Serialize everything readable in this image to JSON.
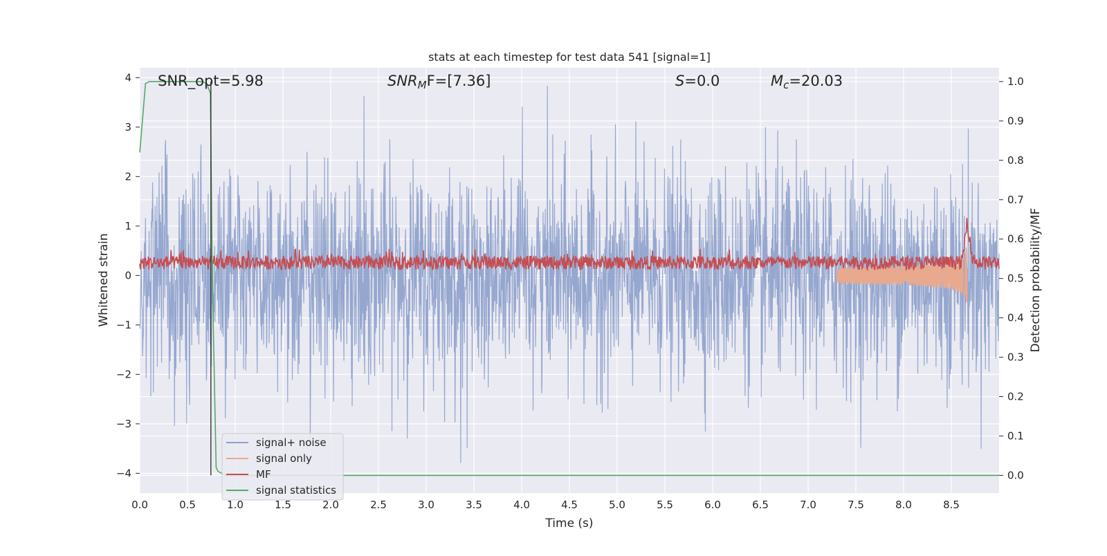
{
  "chart_data": {
    "type": "line",
    "title": "stats at each timestep for test data 541 [signal=1]",
    "xlabel": "Time (s)",
    "ylabel_left": "Whitened strain",
    "ylabel_right": "Detection probability/MF",
    "xlim": [
      0.0,
      9.0
    ],
    "ylim_left": [
      -4.4,
      4.2
    ],
    "ylim_right": [
      -0.045,
      1.035
    ],
    "x_ticks": [
      "0.0",
      "0.5",
      "1.0",
      "1.5",
      "2.0",
      "2.5",
      "3.0",
      "3.5",
      "4.0",
      "4.5",
      "5.0",
      "5.5",
      "6.0",
      "6.5",
      "7.0",
      "7.5",
      "8.0",
      "8.5"
    ],
    "y_left_ticks": [
      "4",
      "3",
      "2",
      "1",
      "0",
      "−1",
      "−2",
      "−3",
      "−4"
    ],
    "y_right_ticks": [
      "1.0",
      "0.9",
      "0.8",
      "0.7",
      "0.6",
      "0.5",
      "0.4",
      "0.3",
      "0.2",
      "0.1",
      "0.0"
    ],
    "grid": true,
    "legend_position": "lower-left",
    "annotations": {
      "snr_opt": "SNR_opt=5.98",
      "snr_mf_main": "SNR",
      "snr_mf_sub": "M",
      "snr_mf_rest": "F=[7.36]",
      "s_main": "S",
      "s_rest": "=0.0",
      "mc_main": "M",
      "mc_sub": "c",
      "mc_rest": "=20.03"
    },
    "series": [
      {
        "name": "signal+ noise",
        "axis": "left",
        "color": "#8da0cb",
        "description_values": {
          "typical_range": [
            -2.5,
            2.5
          ],
          "extremes": [
            -4.0,
            3.85
          ]
        }
      },
      {
        "name": "signal only",
        "axis": "left",
        "color": "#e8a98f",
        "chirp_end_time": 8.67,
        "peak_amplitude": 0.8
      },
      {
        "name": "MF",
        "axis": "right",
        "color": "#c44e52",
        "baseline": 0.54,
        "peak": {
          "x": 8.67,
          "y": 0.64
        }
      },
      {
        "name": "signal statistics",
        "axis": "right",
        "color": "#55a868",
        "x": [
          0.0,
          0.06,
          0.1,
          0.2,
          0.5,
          0.66,
          0.7,
          0.74,
          0.76,
          0.8,
          0.82,
          0.9,
          1.0,
          9.0
        ],
        "y": [
          0.82,
          0.995,
          1.0,
          1.0,
          1.0,
          1.0,
          0.995,
          0.97,
          0.5,
          0.02,
          0.01,
          0.0,
          0.0,
          0.0
        ]
      }
    ],
    "vertical_marker": {
      "x": 0.745,
      "color": "#262626"
    }
  }
}
